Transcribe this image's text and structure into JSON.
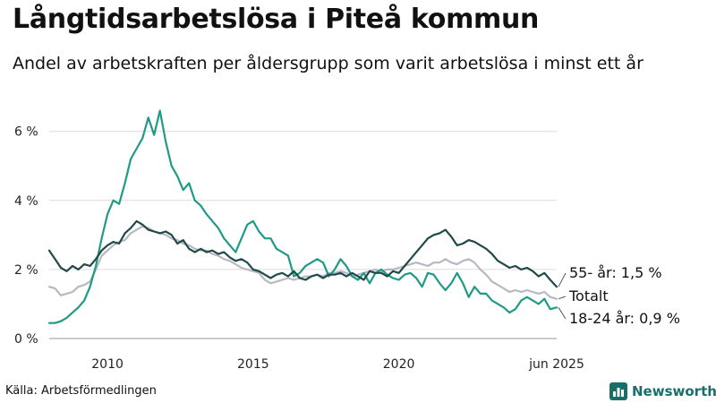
{
  "title": "Långtidsarbetslösa i Piteå kommun",
  "subtitle": "Andel av arbetskraften per åldersgrupp som varit arbetslösa i minst ett år",
  "source": "Källa: Arbetsförmedlingen",
  "brand": {
    "name": "Newsworthy",
    "icon": "bar-chart-logo-icon",
    "color": "#1a6e6a"
  },
  "chart_data": {
    "type": "line",
    "x_range": [
      2008.0,
      2025.42
    ],
    "ylim": [
      0,
      6.9
    ],
    "y_ticks": [
      {
        "value": 0,
        "label": "0 %"
      },
      {
        "value": 2,
        "label": "2 %"
      },
      {
        "value": 4,
        "label": "4 %"
      },
      {
        "value": 6,
        "label": "6 %"
      }
    ],
    "x_ticks": [
      {
        "value": 2010,
        "label": "2010"
      },
      {
        "value": 2015,
        "label": "2015"
      },
      {
        "value": 2020,
        "label": "2020"
      },
      {
        "value": 2025.42,
        "label": "jun 2025"
      }
    ],
    "grid": true,
    "series": [
      {
        "key": "totalt",
        "end_label": "Totalt",
        "color": "#b9b7c4",
        "points": [
          [
            2008.0,
            1.5
          ],
          [
            2008.2,
            1.45
          ],
          [
            2008.4,
            1.25
          ],
          [
            2008.6,
            1.3
          ],
          [
            2008.8,
            1.35
          ],
          [
            2009.0,
            1.5
          ],
          [
            2009.2,
            1.55
          ],
          [
            2009.4,
            1.65
          ],
          [
            2009.6,
            2.0
          ],
          [
            2009.8,
            2.4
          ],
          [
            2010.0,
            2.55
          ],
          [
            2010.2,
            2.7
          ],
          [
            2010.4,
            2.8
          ],
          [
            2010.6,
            2.85
          ],
          [
            2010.8,
            3.05
          ],
          [
            2011.0,
            3.15
          ],
          [
            2011.2,
            3.25
          ],
          [
            2011.4,
            3.2
          ],
          [
            2011.6,
            3.1
          ],
          [
            2011.8,
            3.05
          ],
          [
            2012.0,
            3.0
          ],
          [
            2012.2,
            2.9
          ],
          [
            2012.4,
            2.85
          ],
          [
            2012.6,
            2.75
          ],
          [
            2012.8,
            2.7
          ],
          [
            2013.0,
            2.6
          ],
          [
            2013.2,
            2.55
          ],
          [
            2013.4,
            2.55
          ],
          [
            2013.6,
            2.45
          ],
          [
            2013.8,
            2.4
          ],
          [
            2014.0,
            2.3
          ],
          [
            2014.2,
            2.25
          ],
          [
            2014.4,
            2.15
          ],
          [
            2014.6,
            2.05
          ],
          [
            2014.8,
            2.0
          ],
          [
            2015.0,
            1.95
          ],
          [
            2015.2,
            1.9
          ],
          [
            2015.4,
            1.7
          ],
          [
            2015.6,
            1.6
          ],
          [
            2015.8,
            1.65
          ],
          [
            2016.0,
            1.7
          ],
          [
            2016.2,
            1.75
          ],
          [
            2016.4,
            1.7
          ],
          [
            2016.6,
            1.75
          ],
          [
            2016.8,
            1.8
          ],
          [
            2017.0,
            1.8
          ],
          [
            2017.2,
            1.85
          ],
          [
            2017.4,
            1.8
          ],
          [
            2017.6,
            1.9
          ],
          [
            2017.8,
            1.9
          ],
          [
            2018.0,
            1.95
          ],
          [
            2018.2,
            1.9
          ],
          [
            2018.4,
            1.8
          ],
          [
            2018.6,
            1.85
          ],
          [
            2018.8,
            1.9
          ],
          [
            2019.0,
            1.95
          ],
          [
            2019.2,
            2.0
          ],
          [
            2019.4,
            1.95
          ],
          [
            2019.6,
            2.0
          ],
          [
            2019.8,
            2.0
          ],
          [
            2020.0,
            2.05
          ],
          [
            2020.2,
            2.1
          ],
          [
            2020.4,
            2.15
          ],
          [
            2020.6,
            2.2
          ],
          [
            2020.8,
            2.15
          ],
          [
            2021.0,
            2.1
          ],
          [
            2021.2,
            2.2
          ],
          [
            2021.4,
            2.2
          ],
          [
            2021.6,
            2.3
          ],
          [
            2021.8,
            2.2
          ],
          [
            2022.0,
            2.15
          ],
          [
            2022.2,
            2.25
          ],
          [
            2022.4,
            2.3
          ],
          [
            2022.6,
            2.2
          ],
          [
            2022.8,
            2.0
          ],
          [
            2023.0,
            1.85
          ],
          [
            2023.2,
            1.65
          ],
          [
            2023.4,
            1.55
          ],
          [
            2023.6,
            1.45
          ],
          [
            2023.8,
            1.35
          ],
          [
            2024.0,
            1.4
          ],
          [
            2024.2,
            1.35
          ],
          [
            2024.4,
            1.4
          ],
          [
            2024.6,
            1.35
          ],
          [
            2024.8,
            1.3
          ],
          [
            2025.0,
            1.35
          ],
          [
            2025.2,
            1.2
          ],
          [
            2025.42,
            1.15
          ]
        ]
      },
      {
        "key": "unga",
        "end_label": "18-24 år: 0,9 %",
        "color": "#1f9a87",
        "points": [
          [
            2008.0,
            0.45
          ],
          [
            2008.2,
            0.45
          ],
          [
            2008.4,
            0.5
          ],
          [
            2008.6,
            0.6
          ],
          [
            2008.8,
            0.75
          ],
          [
            2009.0,
            0.9
          ],
          [
            2009.2,
            1.1
          ],
          [
            2009.4,
            1.5
          ],
          [
            2009.6,
            2.1
          ],
          [
            2009.8,
            2.9
          ],
          [
            2010.0,
            3.6
          ],
          [
            2010.2,
            4.0
          ],
          [
            2010.4,
            3.9
          ],
          [
            2010.6,
            4.5
          ],
          [
            2010.8,
            5.2
          ],
          [
            2011.0,
            5.5
          ],
          [
            2011.2,
            5.8
          ],
          [
            2011.4,
            6.4
          ],
          [
            2011.6,
            5.9
          ],
          [
            2011.8,
            6.6
          ],
          [
            2012.0,
            5.7
          ],
          [
            2012.2,
            5.0
          ],
          [
            2012.4,
            4.7
          ],
          [
            2012.6,
            4.3
          ],
          [
            2012.8,
            4.5
          ],
          [
            2013.0,
            4.0
          ],
          [
            2013.2,
            3.85
          ],
          [
            2013.4,
            3.6
          ],
          [
            2013.6,
            3.4
          ],
          [
            2013.8,
            3.2
          ],
          [
            2014.0,
            2.9
          ],
          [
            2014.2,
            2.7
          ],
          [
            2014.4,
            2.5
          ],
          [
            2014.6,
            2.9
          ],
          [
            2014.8,
            3.3
          ],
          [
            2015.0,
            3.4
          ],
          [
            2015.2,
            3.1
          ],
          [
            2015.4,
            2.9
          ],
          [
            2015.6,
            2.9
          ],
          [
            2015.8,
            2.6
          ],
          [
            2016.0,
            2.5
          ],
          [
            2016.2,
            2.4
          ],
          [
            2016.4,
            1.8
          ],
          [
            2016.6,
            1.9
          ],
          [
            2016.8,
            2.1
          ],
          [
            2017.0,
            2.2
          ],
          [
            2017.2,
            2.3
          ],
          [
            2017.4,
            2.2
          ],
          [
            2017.6,
            1.8
          ],
          [
            2017.8,
            2.0
          ],
          [
            2018.0,
            2.3
          ],
          [
            2018.2,
            2.1
          ],
          [
            2018.4,
            1.8
          ],
          [
            2018.6,
            1.7
          ],
          [
            2018.8,
            1.9
          ],
          [
            2019.0,
            1.6
          ],
          [
            2019.2,
            1.9
          ],
          [
            2019.4,
            2.0
          ],
          [
            2019.6,
            1.85
          ],
          [
            2019.8,
            1.75
          ],
          [
            2020.0,
            1.7
          ],
          [
            2020.2,
            1.85
          ],
          [
            2020.4,
            1.9
          ],
          [
            2020.6,
            1.75
          ],
          [
            2020.8,
            1.5
          ],
          [
            2021.0,
            1.9
          ],
          [
            2021.2,
            1.85
          ],
          [
            2021.4,
            1.6
          ],
          [
            2021.6,
            1.4
          ],
          [
            2021.8,
            1.6
          ],
          [
            2022.0,
            1.9
          ],
          [
            2022.2,
            1.6
          ],
          [
            2022.4,
            1.2
          ],
          [
            2022.6,
            1.5
          ],
          [
            2022.8,
            1.3
          ],
          [
            2023.0,
            1.3
          ],
          [
            2023.2,
            1.1
          ],
          [
            2023.4,
            1.0
          ],
          [
            2023.6,
            0.9
          ],
          [
            2023.8,
            0.75
          ],
          [
            2024.0,
            0.85
          ],
          [
            2024.2,
            1.1
          ],
          [
            2024.4,
            1.2
          ],
          [
            2024.6,
            1.1
          ],
          [
            2024.8,
            1.0
          ],
          [
            2025.0,
            1.15
          ],
          [
            2025.2,
            0.85
          ],
          [
            2025.42,
            0.9
          ]
        ]
      },
      {
        "key": "aldre",
        "end_label": "55- år: 1,5 %",
        "color": "#1f4a47",
        "points": [
          [
            2008.0,
            2.55
          ],
          [
            2008.2,
            2.3
          ],
          [
            2008.4,
            2.05
          ],
          [
            2008.6,
            1.95
          ],
          [
            2008.8,
            2.1
          ],
          [
            2009.0,
            2.0
          ],
          [
            2009.2,
            2.15
          ],
          [
            2009.4,
            2.1
          ],
          [
            2009.6,
            2.3
          ],
          [
            2009.8,
            2.55
          ],
          [
            2010.0,
            2.7
          ],
          [
            2010.2,
            2.8
          ],
          [
            2010.4,
            2.75
          ],
          [
            2010.6,
            3.05
          ],
          [
            2010.8,
            3.2
          ],
          [
            2011.0,
            3.4
          ],
          [
            2011.2,
            3.3
          ],
          [
            2011.4,
            3.15
          ],
          [
            2011.6,
            3.1
          ],
          [
            2011.8,
            3.05
          ],
          [
            2012.0,
            3.1
          ],
          [
            2012.2,
            3.0
          ],
          [
            2012.4,
            2.75
          ],
          [
            2012.6,
            2.85
          ],
          [
            2012.8,
            2.6
          ],
          [
            2013.0,
            2.5
          ],
          [
            2013.2,
            2.6
          ],
          [
            2013.4,
            2.5
          ],
          [
            2013.6,
            2.55
          ],
          [
            2013.8,
            2.45
          ],
          [
            2014.0,
            2.5
          ],
          [
            2014.2,
            2.35
          ],
          [
            2014.4,
            2.25
          ],
          [
            2014.6,
            2.3
          ],
          [
            2014.8,
            2.2
          ],
          [
            2015.0,
            2.0
          ],
          [
            2015.2,
            1.95
          ],
          [
            2015.4,
            1.85
          ],
          [
            2015.6,
            1.75
          ],
          [
            2015.8,
            1.85
          ],
          [
            2016.0,
            1.9
          ],
          [
            2016.2,
            1.8
          ],
          [
            2016.4,
            1.95
          ],
          [
            2016.6,
            1.75
          ],
          [
            2016.8,
            1.7
          ],
          [
            2017.0,
            1.8
          ],
          [
            2017.2,
            1.85
          ],
          [
            2017.4,
            1.75
          ],
          [
            2017.6,
            1.85
          ],
          [
            2017.8,
            1.85
          ],
          [
            2018.0,
            1.9
          ],
          [
            2018.2,
            1.8
          ],
          [
            2018.4,
            1.9
          ],
          [
            2018.6,
            1.8
          ],
          [
            2018.8,
            1.7
          ],
          [
            2019.0,
            1.95
          ],
          [
            2019.2,
            1.9
          ],
          [
            2019.4,
            1.9
          ],
          [
            2019.6,
            1.8
          ],
          [
            2019.8,
            1.95
          ],
          [
            2020.0,
            1.9
          ],
          [
            2020.2,
            2.1
          ],
          [
            2020.4,
            2.3
          ],
          [
            2020.6,
            2.5
          ],
          [
            2020.8,
            2.7
          ],
          [
            2021.0,
            2.9
          ],
          [
            2021.2,
            3.0
          ],
          [
            2021.4,
            3.05
          ],
          [
            2021.6,
            3.15
          ],
          [
            2021.8,
            2.95
          ],
          [
            2022.0,
            2.7
          ],
          [
            2022.2,
            2.75
          ],
          [
            2022.4,
            2.85
          ],
          [
            2022.6,
            2.8
          ],
          [
            2022.8,
            2.7
          ],
          [
            2023.0,
            2.6
          ],
          [
            2023.2,
            2.45
          ],
          [
            2023.4,
            2.25
          ],
          [
            2023.6,
            2.15
          ],
          [
            2023.8,
            2.05
          ],
          [
            2024.0,
            2.1
          ],
          [
            2024.2,
            2.0
          ],
          [
            2024.4,
            2.05
          ],
          [
            2024.6,
            1.95
          ],
          [
            2024.8,
            1.8
          ],
          [
            2025.0,
            1.9
          ],
          [
            2025.2,
            1.7
          ],
          [
            2025.42,
            1.5
          ]
        ]
      }
    ]
  }
}
